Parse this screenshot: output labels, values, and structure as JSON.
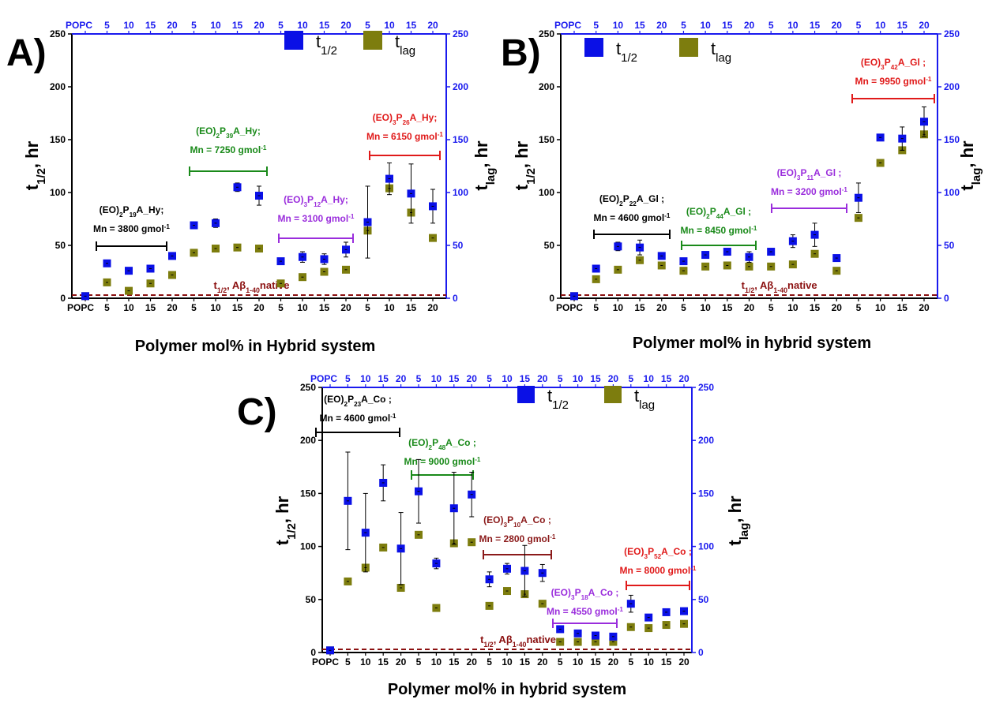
{
  "colors": {
    "t_half": "#0a10e6",
    "t_lag": "#7d7d0e",
    "axis_right": "#1a1aee",
    "native_line": "#8b1010",
    "black": "#000000",
    "green": "#1a8a1a",
    "purple": "#9a2ddc",
    "red": "#e01a1a",
    "darkred": "#8b1a1a"
  },
  "chart_data": [
    {
      "panel": "A",
      "type": "scatter",
      "xlabel": "Polymer mol% in Hybrid system",
      "ylabel_left": "t1/2, hr",
      "ylabel_right": "tlag, hr",
      "ylim": [
        0,
        250
      ],
      "yticks": [
        0,
        50,
        100,
        150,
        200,
        250
      ],
      "x_ticks_bottom": [
        "POPC",
        "5",
        "10",
        "15",
        "20",
        "5",
        "10",
        "15",
        "20",
        "5",
        "10",
        "15",
        "20",
        "5",
        "10",
        "15",
        "20"
      ],
      "x_ticks_top": [
        "POPC",
        "5",
        "10",
        "15",
        "20",
        "5",
        "10",
        "15",
        "20",
        "5",
        "10",
        "15",
        "20",
        "5",
        "10",
        "15",
        "20"
      ],
      "legend": [
        "t1/2",
        "tlag"
      ],
      "legend_position": "top-right",
      "series": [
        {
          "name": "t1/2",
          "values": [
            2,
            33,
            26,
            28,
            40,
            69,
            71,
            105,
            97,
            35,
            39,
            37,
            46,
            72,
            113,
            99,
            87
          ],
          "errors": [
            0,
            0,
            0,
            0,
            0,
            0,
            4,
            4,
            9,
            0,
            5,
            5,
            7,
            34,
            15,
            28,
            16
          ]
        },
        {
          "name": "tlag",
          "values": [
            2,
            15,
            7,
            14,
            22,
            43,
            47,
            48,
            47,
            14,
            20,
            25,
            27,
            64,
            104,
            81,
            57
          ],
          "errors": [
            0,
            0,
            0,
            0,
            0,
            0,
            0,
            0,
            0,
            0,
            0,
            0,
            0,
            0,
            0,
            0,
            0
          ]
        }
      ],
      "native_line": {
        "value": 3,
        "label": "t1/2, Aβ1-40native"
      },
      "annotations": [
        {
          "line1": "(EO)2P19A_Hy;",
          "line2": "Mn = 3800 gmol-1",
          "color": "black"
        },
        {
          "line1": "(EO)2P39A_Hy;",
          "line2": "Mn = 7250 gmol-1",
          "color": "green"
        },
        {
          "line1": "(EO)3P12A_Hy;",
          "line2": "Mn = 3100 gmol-1",
          "color": "purple"
        },
        {
          "line1": "(EO)3P26A_Hy;",
          "line2": "Mn = 6150 gmol-1",
          "color": "red"
        }
      ]
    },
    {
      "panel": "B",
      "type": "scatter",
      "xlabel": "Polymer mol% in hybrid system",
      "ylabel_left": "t1/2, hr",
      "ylabel_right": "tlag, hr",
      "ylim": [
        0,
        250
      ],
      "yticks": [
        0,
        50,
        100,
        150,
        200,
        250
      ],
      "x_ticks_bottom": [
        "POPC",
        "5",
        "10",
        "15",
        "20",
        "5",
        "10",
        "15",
        "20",
        "5",
        "10",
        "15",
        "20",
        "5",
        "10",
        "15",
        "20"
      ],
      "x_ticks_top": [
        "POPC",
        "5",
        "10",
        "15",
        "20",
        "5",
        "10",
        "15",
        "20",
        "5",
        "10",
        "15",
        "20",
        "5",
        "10",
        "15",
        "20"
      ],
      "legend": [
        "t1/2",
        "tlag"
      ],
      "legend_position": "top-left",
      "series": [
        {
          "name": "t1/2",
          "values": [
            2,
            28,
            49,
            48,
            40,
            35,
            41,
            44,
            39,
            44,
            54,
            60,
            38,
            95,
            152,
            151,
            167
          ],
          "errors": [
            0,
            0,
            4,
            7,
            0,
            0,
            0,
            0,
            5,
            0,
            6,
            11,
            0,
            14,
            3,
            11,
            14
          ]
        },
        {
          "name": "tlag",
          "values": [
            2,
            18,
            27,
            36,
            31,
            26,
            30,
            31,
            30,
            30,
            32,
            42,
            26,
            76,
            128,
            140,
            155
          ],
          "errors": [
            0,
            0,
            0,
            0,
            0,
            0,
            0,
            0,
            0,
            0,
            0,
            0,
            0,
            0,
            0,
            0,
            0
          ]
        }
      ],
      "native_line": {
        "value": 3,
        "label": "t1/2, Aβ1-40native"
      },
      "annotations": [
        {
          "line1": "(EO)2P22A_Gl ;",
          "line2": "Mn = 4600 gmol-1",
          "color": "black"
        },
        {
          "line1": "(EO)2P44A_Gl ;",
          "line2": "Mn = 8450 gmol-1",
          "color": "green"
        },
        {
          "line1": "(EO)3P11A_Gl ;",
          "line2": "Mn = 3200 gmol-1",
          "color": "purple"
        },
        {
          "line1": "(EO)3P42A_Gl ;",
          "line2": "Mn = 9950 gmol-1",
          "color": "red"
        }
      ]
    },
    {
      "panel": "C",
      "type": "scatter",
      "xlabel": "Polymer mol% in hybrid system",
      "ylabel_left": "t1/2, hr",
      "ylabel_right": "tlag, hr",
      "ylim": [
        0,
        250
      ],
      "yticks": [
        0,
        50,
        100,
        150,
        200,
        250
      ],
      "x_ticks_bottom": [
        "POPC",
        "5",
        "10",
        "15",
        "20",
        "5",
        "10",
        "15",
        "20",
        "5",
        "10",
        "15",
        "20",
        "5",
        "10",
        "15",
        "20",
        "5",
        "10",
        "15",
        "20"
      ],
      "x_ticks_top": [
        "POPC",
        "5",
        "10",
        "15",
        "20",
        "5",
        "10",
        "15",
        "20",
        "5",
        "10",
        "15",
        "20",
        "5",
        "10",
        "15",
        "20",
        "5",
        "10",
        "15",
        "20"
      ],
      "legend": [
        "t1/2",
        "tlag"
      ],
      "legend_position": "top-right",
      "series": [
        {
          "name": "t1/2",
          "values": [
            2,
            143,
            113,
            160,
            98,
            152,
            84,
            136,
            149,
            69,
            79,
            77,
            75,
            22,
            18,
            16,
            15,
            46,
            33,
            38,
            39
          ],
          "errors": [
            0,
            46,
            37,
            17,
            34,
            30,
            5,
            34,
            21,
            7,
            5,
            24,
            8,
            0,
            0,
            0,
            0,
            8,
            0,
            0,
            0
          ]
        },
        {
          "name": "tlag",
          "values": [
            2,
            67,
            80,
            99,
            61,
            111,
            42,
            103,
            104,
            44,
            58,
            55,
            46,
            10,
            10,
            10,
            10,
            24,
            23,
            26,
            27
          ],
          "errors": [
            0,
            0,
            0,
            0,
            0,
            0,
            0,
            0,
            0,
            0,
            0,
            0,
            0,
            0,
            0,
            0,
            0,
            0,
            0,
            0,
            0
          ]
        }
      ],
      "native_line": {
        "value": 3,
        "label": "t1/2, Aβ1-40native"
      },
      "annotations": [
        {
          "line1": "(EO)2P23A_Co ;",
          "line2": "Mn = 4600 gmol-1",
          "color": "black"
        },
        {
          "line1": "(EO)2P48A_Co ;",
          "line2": "Mn = 9000 gmol-1",
          "color": "green"
        },
        {
          "line1": "(EO)3P10A_Co ;",
          "line2": "Mn = 2800 gmol-1",
          "color": "darkred"
        },
        {
          "line1": "(EO)3P18A_Co ;",
          "line2": "Mn = 4550 gmol-1",
          "color": "purple"
        },
        {
          "line1": "(EO)3P52A_Co ;",
          "line2": "Mn = 8000 gmol-1",
          "color": "red"
        }
      ]
    }
  ]
}
